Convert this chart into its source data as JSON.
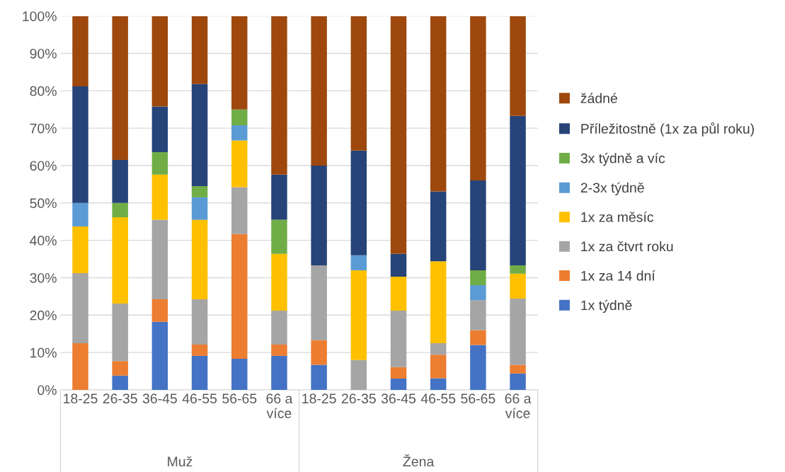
{
  "chart_data": {
    "type": "bar",
    "stacked": true,
    "categories": [
      "18-25",
      "26-35",
      "36-45",
      "46-55",
      "56-65",
      "66 a více",
      "18-25",
      "26-35",
      "36-45",
      "46-55",
      "56-65",
      "66 a více"
    ],
    "series": [
      {
        "name": "1x týdně",
        "color": "#4472c4",
        "values": [
          0,
          3.8,
          18.2,
          9.1,
          8.3,
          9.1,
          6.7,
          0,
          3,
          3.1,
          12,
          4.4
        ]
      },
      {
        "name": "1x za 14 dní",
        "color": "#ed7d31",
        "values": [
          12.5,
          3.9,
          6.0,
          3.0,
          33.4,
          3.0,
          6.6,
          0,
          3.1,
          6.3,
          4,
          2.3
        ]
      },
      {
        "name": "1x za čtvrt roku",
        "color": "#a5a5a5",
        "values": [
          18.7,
          15.4,
          21.3,
          12.1,
          12.5,
          9.1,
          20,
          8,
          15.1,
          3.1,
          8,
          17.7
        ]
      },
      {
        "name": "1x za měsíc",
        "color": "#ffc000",
        "values": [
          12.5,
          23.1,
          12.1,
          21.3,
          12.5,
          15.2,
          0,
          24,
          9.1,
          21.9,
          0,
          6.7
        ]
      },
      {
        "name": "2-3x týdně",
        "color": "#5b9bd5",
        "values": [
          6.3,
          0,
          0,
          6.0,
          4.1,
          0,
          0,
          4,
          0,
          0,
          4,
          0
        ]
      },
      {
        "name": "3x týdně a víc",
        "color": "#70ad47",
        "values": [
          0,
          3.8,
          6.0,
          3.0,
          4.2,
          9.1,
          0,
          0,
          0,
          0,
          4,
          2.2
        ]
      },
      {
        "name": "Příležitostně (1x za půl roku)",
        "color": "#264478",
        "values": [
          31.2,
          11.5,
          12.2,
          27.3,
          0,
          12.1,
          26.7,
          28,
          6.1,
          18.7,
          24,
          40
        ]
      },
      {
        "name": "žádné",
        "color": "#9e480e",
        "values": [
          18.8,
          38.5,
          24.2,
          18.2,
          25,
          42.4,
          40,
          36,
          63.6,
          46.9,
          44,
          26.7
        ]
      }
    ],
    "ylim": [
      0,
      100
    ],
    "yticks": [
      {
        "value": 0,
        "label": "0%"
      },
      {
        "value": 10,
        "label": "10%"
      },
      {
        "value": 20,
        "label": "20%"
      },
      {
        "value": 30,
        "label": "30%"
      },
      {
        "value": 40,
        "label": "40%"
      },
      {
        "value": 50,
        "label": "50%"
      },
      {
        "value": 60,
        "label": "60%"
      },
      {
        "value": 70,
        "label": "70%"
      },
      {
        "value": 80,
        "label": "80%"
      },
      {
        "value": 90,
        "label": "90%"
      },
      {
        "value": 100,
        "label": "100%"
      }
    ],
    "grid": "y",
    "legend": "right",
    "annotations": [
      "Muž",
      "Žena"
    ]
  }
}
